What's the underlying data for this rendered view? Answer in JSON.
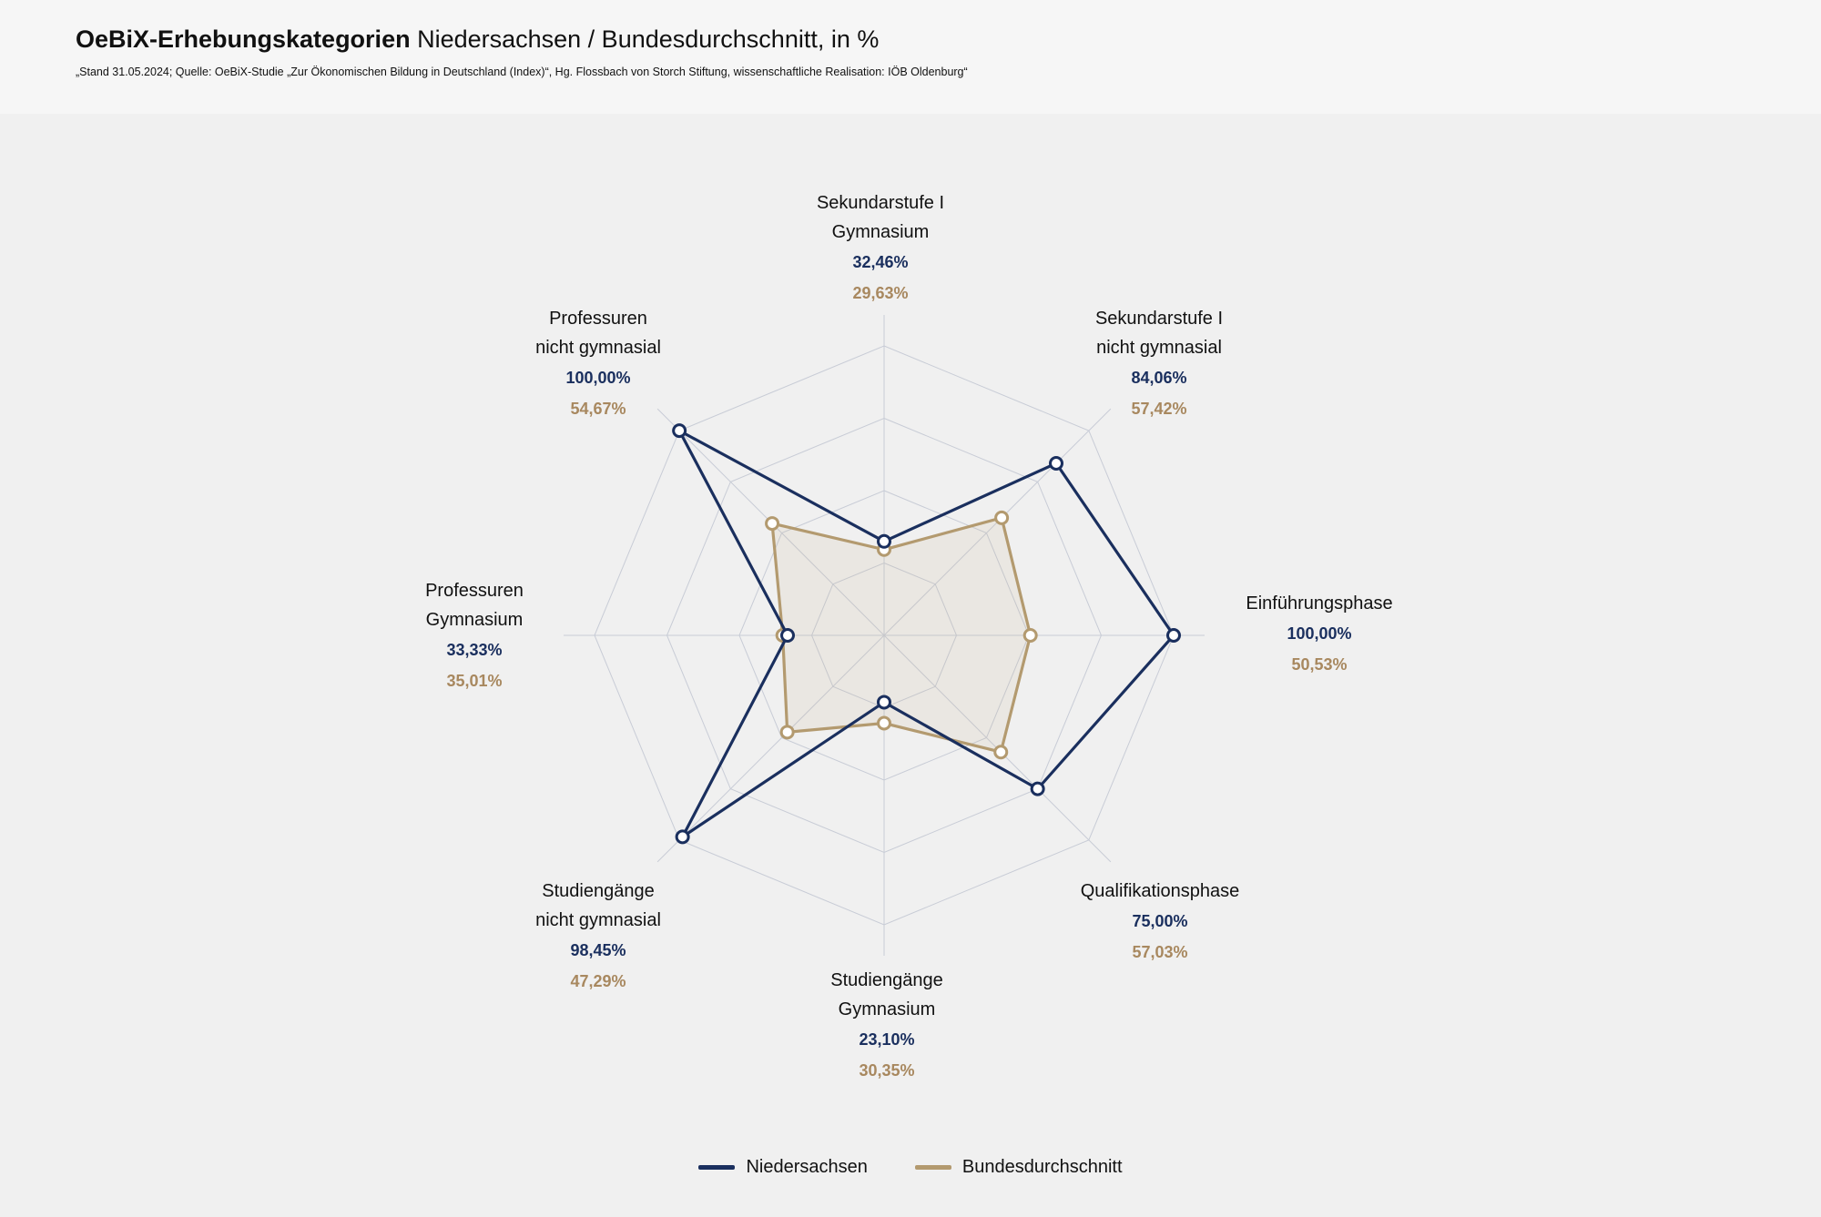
{
  "header": {
    "title_bold": "OeBiX-Erhebungskategorien",
    "title_rest": " Niedersachsen / Bundesdurchschnitt, in %",
    "source": "„Stand 31.05.2024; Quelle: OeBiX-Studie „Zur Ökonomischen Bildung in Deutschland (Index)“, Hg. Flossbach von Storch Stiftung, wissenschaftliche Realisation: IÖB Oldenburg“"
  },
  "colors": {
    "niedersachsen": "#1a2f5e",
    "bundesdurchschnitt": "#b39a6f",
    "grid": "#c8ccd6"
  },
  "chart_data": {
    "type": "radar",
    "ylim": [
      0,
      100
    ],
    "grid_levels": 4,
    "categories": [
      "Sekundarstufe I Gymnasium",
      "Sekundarstufe I nicht gymnasial",
      "Einführungsphase",
      "Qualifikationsphase",
      "Studiengänge Gymnasium",
      "Studiengänge nicht gymnasial",
      "Professuren Gymnasium",
      "Professuren nicht gymnasial"
    ],
    "category_lines": [
      [
        "Sekundarstufe I",
        "Gymnasium"
      ],
      [
        "Sekundarstufe I",
        "nicht gymnasial"
      ],
      [
        "Einführungsphase"
      ],
      [
        "Qualifikationsphase"
      ],
      [
        "Studiengänge",
        "Gymnasium"
      ],
      [
        "Studiengänge",
        "nicht gymnasial"
      ],
      [
        "Professuren",
        "Gymnasium"
      ],
      [
        "Professuren",
        "nicht gymnasial"
      ]
    ],
    "series": [
      {
        "name": "Niedersachsen",
        "values": [
          32.46,
          84.06,
          100.0,
          75.0,
          23.1,
          98.45,
          33.33,
          100.0
        ],
        "labels": [
          "32,46%",
          "84,06%",
          "100,00%",
          "75,00%",
          "23,10%",
          "98,45%",
          "33,33%",
          "100,00%"
        ]
      },
      {
        "name": "Bundesdurchschnitt",
        "values": [
          29.63,
          57.42,
          50.53,
          57.03,
          30.35,
          47.29,
          35.01,
          54.67
        ],
        "labels": [
          "29,63%",
          "57,42%",
          "50,53%",
          "57,03%",
          "30,35%",
          "47,29%",
          "35,01%",
          "54,67%"
        ]
      }
    ],
    "legend_position": "bottom"
  }
}
